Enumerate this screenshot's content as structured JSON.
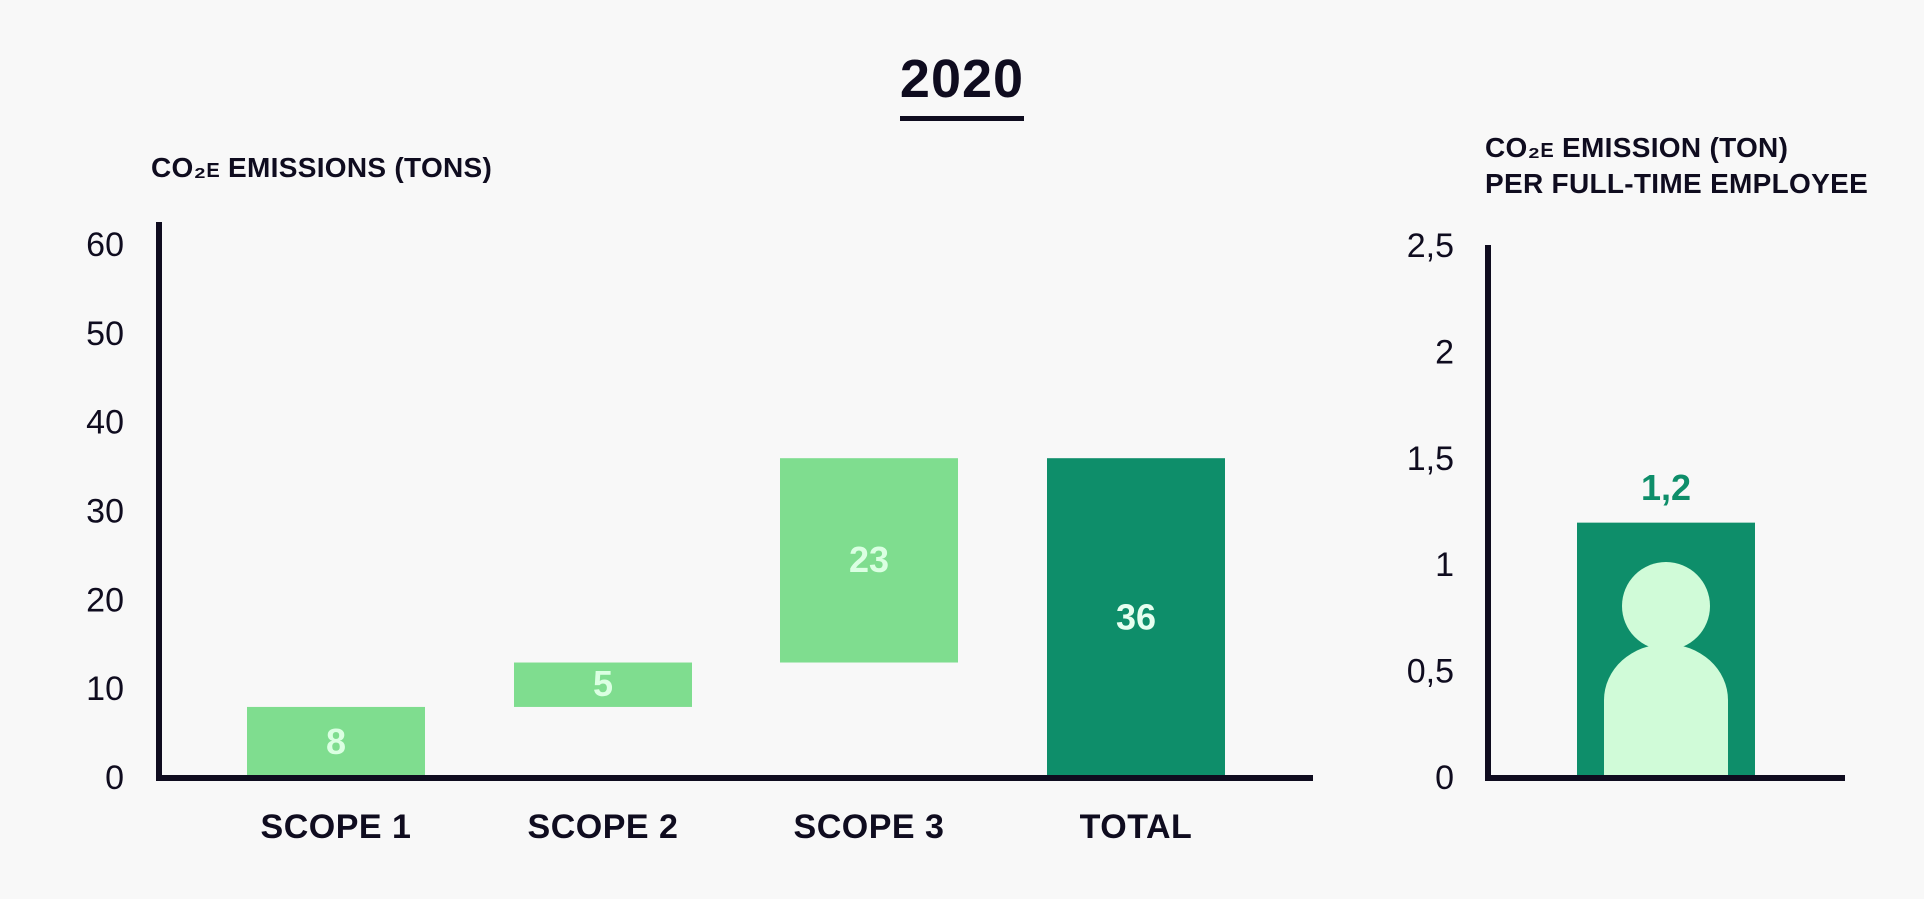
{
  "title": "2020",
  "colors": {
    "scope": "#7fdd8f",
    "total": "#0e8e6a",
    "person": "#d0fbd8",
    "label_light": "#dbffe2",
    "label_dark": "#e6fff0",
    "label_value": "#0e8e6a",
    "axis": "#0f0c1f"
  },
  "chart_data": [
    {
      "type": "bar",
      "subtype": "waterfall",
      "title": "CO₂e EMISSIONS (TONS)",
      "categories": [
        "SCOPE 1",
        "SCOPE 2",
        "SCOPE 3",
        "TOTAL"
      ],
      "values": [
        8,
        5,
        23,
        36
      ],
      "bases": [
        0,
        8,
        13,
        0
      ],
      "data_labels": [
        "8",
        "5",
        "23",
        "36"
      ],
      "ylim": [
        0,
        60
      ],
      "yticks": [
        "0",
        "10",
        "20",
        "30",
        "40",
        "50",
        "60"
      ],
      "grid": false
    },
    {
      "type": "bar",
      "title": "CO₂e EMISSION (TON)\nPER FULL-TIME EMPLOYEE",
      "categories": [
        ""
      ],
      "values": [
        1.2
      ],
      "data_labels": [
        "1,2"
      ],
      "icon": "person-icon",
      "ylim": [
        0,
        2.5
      ],
      "yticks": [
        "0",
        "0,5",
        "1",
        "1,5",
        "2",
        "2,5"
      ],
      "grid": false
    }
  ]
}
